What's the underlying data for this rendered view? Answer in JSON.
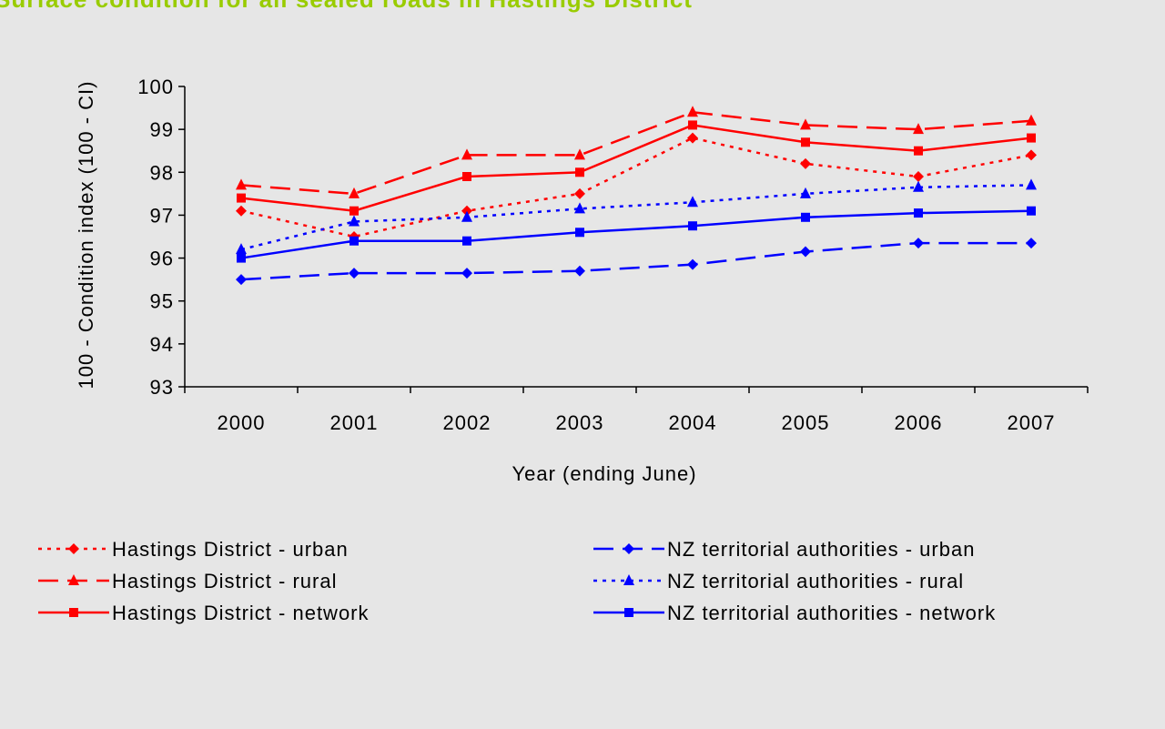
{
  "chart_data": {
    "type": "line",
    "title": "Surface condition for all sealed roads in Hastings District",
    "x_label": "Year (ending June)",
    "y_label": "100 - Condition index (100 - CI)",
    "categories": [
      "2000",
      "2001",
      "2002",
      "2003",
      "2004",
      "2005",
      "2006",
      "2007"
    ],
    "ylim": [
      93,
      100
    ],
    "yticks": [
      93,
      94,
      95,
      96,
      97,
      98,
      99,
      100
    ],
    "grid": false,
    "legend": "bottom",
    "series": [
      {
        "name": "Hastings District - urban",
        "color": "#ff0000",
        "dash": "dotted",
        "marker": "diamond",
        "values": [
          97.1,
          96.5,
          97.1,
          97.5,
          98.8,
          98.2,
          97.9,
          98.4
        ]
      },
      {
        "name": "Hastings District - rural",
        "color": "#ff0000",
        "dash": "dashed",
        "marker": "triangle",
        "values": [
          97.7,
          97.5,
          98.4,
          98.4,
          99.4,
          99.1,
          99.0,
          99.2
        ]
      },
      {
        "name": "Hastings District - network",
        "color": "#ff0000",
        "dash": "solid",
        "marker": "square",
        "values": [
          97.4,
          97.1,
          97.9,
          98.0,
          99.1,
          98.7,
          98.5,
          98.8
        ]
      },
      {
        "name": "NZ territorial authorities - urban",
        "color": "#0000ff",
        "dash": "dashed",
        "marker": "diamond",
        "values": [
          95.5,
          95.65,
          95.65,
          95.7,
          95.85,
          96.15,
          96.35,
          96.35
        ]
      },
      {
        "name": "NZ territorial authorities - rural",
        "color": "#0000ff",
        "dash": "dotted",
        "marker": "triangle",
        "values": [
          96.2,
          96.85,
          96.95,
          97.15,
          97.3,
          97.5,
          97.65,
          97.7
        ]
      },
      {
        "name": "NZ territorial authorities - network",
        "color": "#0000ff",
        "dash": "solid",
        "marker": "square",
        "values": [
          96.0,
          96.4,
          96.4,
          96.6,
          96.75,
          96.95,
          97.05,
          97.1
        ]
      }
    ]
  }
}
